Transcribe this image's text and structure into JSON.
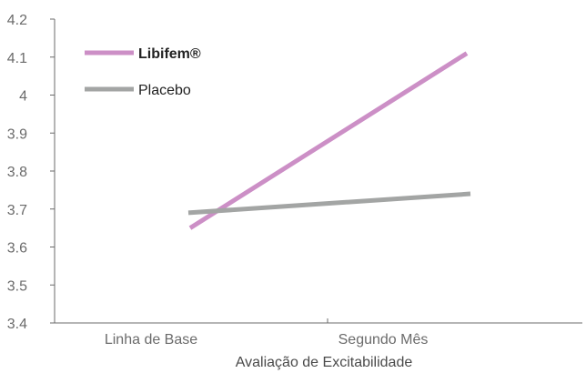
{
  "chart_data": {
    "type": "line",
    "title": "",
    "xlabel": "Avaliação de Excitabilidade",
    "ylabel": "",
    "categories": [
      "Linha de Base",
      "Segundo Mês"
    ],
    "ylim": [
      3.4,
      4.2
    ],
    "yticks": [
      "3.4",
      "3.5",
      "3.6",
      "3.7",
      "3.8",
      "3.9",
      "4",
      "4.1",
      "4.2"
    ],
    "grid": false,
    "legend_position": "top-left",
    "series": [
      {
        "name": "Libifem®",
        "values": [
          3.65,
          4.11
        ],
        "color": "#cc8fc6",
        "bold": true
      },
      {
        "name": "Placebo",
        "values": [
          3.69,
          3.74
        ],
        "color": "#a3a5a4",
        "bold": false
      }
    ]
  }
}
